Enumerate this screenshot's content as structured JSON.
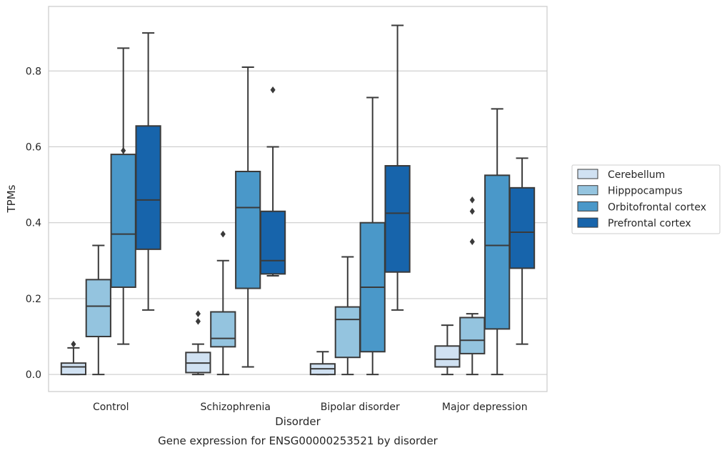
{
  "chart_data": {
    "type": "box",
    "caption": "Gene expression for ENSG00000253521 by disorder",
    "xlabel": "Disorder",
    "ylabel": "TPMs",
    "ylim": [
      -0.045,
      0.97
    ],
    "yticks": [
      "0.0",
      "0.2",
      "0.4",
      "0.6",
      "0.8"
    ],
    "grid": true,
    "legend_position": "right",
    "categories": [
      "Control",
      "Schizophrenia",
      "Bipolar disorder",
      "Major depression"
    ],
    "series": [
      {
        "name": "Cerebellum",
        "color": "#d0e1f2",
        "boxes": [
          {
            "whislo": 0.0,
            "q1": 0.0,
            "med": 0.02,
            "q3": 0.03,
            "whishi": 0.07,
            "fliers": [
              0.08
            ]
          },
          {
            "whislo": 0.0,
            "q1": 0.005,
            "med": 0.03,
            "q3": 0.058,
            "whishi": 0.08,
            "fliers": [
              0.14,
              0.16
            ]
          },
          {
            "whislo": 0.0,
            "q1": 0.0,
            "med": 0.015,
            "q3": 0.028,
            "whishi": 0.06,
            "fliers": []
          },
          {
            "whislo": 0.0,
            "q1": 0.02,
            "med": 0.04,
            "q3": 0.075,
            "whishi": 0.13,
            "fliers": []
          }
        ]
      },
      {
        "name": "Hipppocampus",
        "color": "#94c4df",
        "boxes": [
          {
            "whislo": 0.0,
            "q1": 0.1,
            "med": 0.18,
            "q3": 0.25,
            "whishi": 0.34,
            "fliers": []
          },
          {
            "whislo": 0.0,
            "q1": 0.073,
            "med": 0.095,
            "q3": 0.165,
            "whishi": 0.3,
            "fliers": [
              0.37
            ]
          },
          {
            "whislo": 0.0,
            "q1": 0.045,
            "med": 0.145,
            "q3": 0.178,
            "whishi": 0.31,
            "fliers": []
          },
          {
            "whislo": 0.0,
            "q1": 0.055,
            "med": 0.09,
            "q3": 0.15,
            "whishi": 0.16,
            "fliers": [
              0.35,
              0.43,
              0.46
            ]
          }
        ]
      },
      {
        "name": "Orbitofrontal cortex",
        "color": "#4a98c9",
        "boxes": [
          {
            "whislo": 0.08,
            "q1": 0.23,
            "med": 0.37,
            "q3": 0.58,
            "whishi": 0.86,
            "fliers": [
              0.59
            ]
          },
          {
            "whislo": 0.02,
            "q1": 0.227,
            "med": 0.44,
            "q3": 0.535,
            "whishi": 0.81,
            "fliers": []
          },
          {
            "whislo": 0.0,
            "q1": 0.06,
            "med": 0.23,
            "q3": 0.4,
            "whishi": 0.73,
            "fliers": []
          },
          {
            "whislo": 0.0,
            "q1": 0.12,
            "med": 0.34,
            "q3": 0.525,
            "whishi": 0.7,
            "fliers": []
          }
        ]
      },
      {
        "name": "Prefrontal cortex",
        "color": "#1764ab",
        "boxes": [
          {
            "whislo": 0.17,
            "q1": 0.33,
            "med": 0.46,
            "q3": 0.655,
            "whishi": 0.9,
            "fliers": []
          },
          {
            "whislo": 0.26,
            "q1": 0.265,
            "med": 0.3,
            "q3": 0.43,
            "whishi": 0.6,
            "fliers": [
              0.75
            ]
          },
          {
            "whislo": 0.17,
            "q1": 0.27,
            "med": 0.425,
            "q3": 0.55,
            "whishi": 0.92,
            "fliers": []
          },
          {
            "whislo": 0.08,
            "q1": 0.28,
            "med": 0.375,
            "q3": 0.492,
            "whishi": 0.57,
            "fliers": []
          }
        ]
      }
    ]
  }
}
